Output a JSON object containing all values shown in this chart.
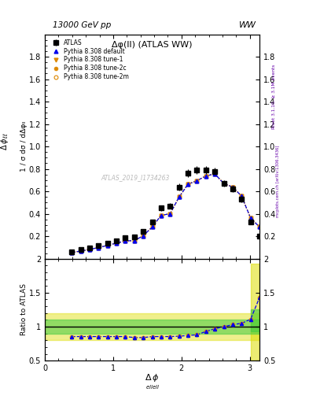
{
  "title_top": "13000 GeV pp",
  "title_right": "WW",
  "plot_title": "Δφ(ll) (ATLAS WW)",
  "ylabel_main": "1 / σ dσ / dΔφₗₗ",
  "ylabel_left_rot": "Δ φ ₗₗₗₗ",
  "ylabel_ratio": "Ratio to ATLAS",
  "right_label1": "Rivet 3.1.10, ≥ 3.1M events",
  "right_label2": "mcplots.cern.ch [arXiv:1306.3436]",
  "watermark": "ATLAS_2019_I1734263",
  "ylim_main": [
    0.0,
    2.0
  ],
  "ylim_ratio": [
    0.5,
    2.0
  ],
  "xlim": [
    0.0,
    3.14159
  ],
  "x_data": [
    0.3927,
    0.5236,
    0.6545,
    0.7854,
    0.9163,
    1.0472,
    1.1781,
    1.309,
    1.4399,
    1.5708,
    1.7017,
    1.8326,
    1.9635,
    2.0944,
    2.2253,
    2.3562,
    2.4871,
    2.618,
    2.7489,
    2.8798,
    3.0107,
    3.1416
  ],
  "atlas_y": [
    0.063,
    0.08,
    0.097,
    0.115,
    0.138,
    0.162,
    0.185,
    0.192,
    0.243,
    0.33,
    0.452,
    0.468,
    0.638,
    0.762,
    0.79,
    0.793,
    0.779,
    0.67,
    0.62,
    0.53,
    0.325,
    0.198
  ],
  "atlas_yerr": [
    0.008,
    0.008,
    0.008,
    0.008,
    0.01,
    0.012,
    0.012,
    0.012,
    0.016,
    0.02,
    0.025,
    0.025,
    0.032,
    0.035,
    0.035,
    0.035,
    0.033,
    0.03,
    0.028,
    0.026,
    0.022,
    0.018
  ],
  "ratio_vals": [
    0.855,
    0.855,
    0.855,
    0.855,
    0.855,
    0.855,
    0.855,
    0.84,
    0.84,
    0.855,
    0.855,
    0.855,
    0.86,
    0.87,
    0.88,
    0.93,
    0.97,
    1.0,
    1.03,
    1.05,
    1.11,
    1.43
  ],
  "color_default": "#0000ee",
  "color_tune": "#dd8800",
  "color_atlas": "#000000",
  "band_green": [
    0.9,
    1.1
  ],
  "band_yellow": [
    0.8,
    1.2
  ],
  "band_green_last": [
    0.93,
    1.25
  ],
  "band_yellow_last": [
    0.5,
    1.93
  ],
  "xticks": [
    0,
    1,
    2,
    3
  ],
  "yticks_main": [
    0.2,
    0.4,
    0.6,
    0.8,
    1.0,
    1.2,
    1.4,
    1.6,
    1.8
  ],
  "yticks_ratio": [
    0.5,
    1.0,
    1.5,
    2.0
  ]
}
